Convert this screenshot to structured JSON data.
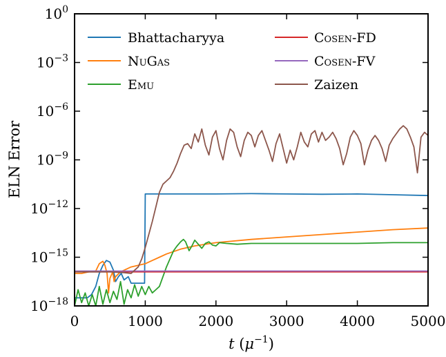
{
  "chart_data": {
    "type": "line",
    "title": "",
    "xlabel": "t (μ⁻¹)",
    "ylabel": "ELN Error",
    "xlim": [
      0,
      5000
    ],
    "ylim_log10": [
      -18,
      0
    ],
    "yscale": "log",
    "grid": false,
    "legend_placement": "top",
    "x_ticks": [
      0,
      1000,
      2000,
      3000,
      4000,
      5000
    ],
    "x_tick_labels": [
      "0",
      "1000",
      "2000",
      "3000",
      "4000",
      "5000"
    ],
    "y_ticks_log10": [
      -18,
      -15,
      -12,
      -9,
      -6,
      -3,
      0
    ],
    "y_tick_labels": [
      {
        "base": "10",
        "exp": "−18"
      },
      {
        "base": "10",
        "exp": "−15"
      },
      {
        "base": "10",
        "exp": "−12"
      },
      {
        "base": "10",
        "exp": "−9"
      },
      {
        "base": "10",
        "exp": "−6"
      },
      {
        "base": "10",
        "exp": "−3"
      },
      {
        "base": "10",
        "exp": "0"
      }
    ],
    "series": [
      {
        "name": "Bhattacharyya",
        "color": "#1f77b4",
        "points": [
          [
            0,
            -17.5
          ],
          [
            180,
            -17.5
          ],
          [
            240,
            -17.3
          ],
          [
            300,
            -16.8
          ],
          [
            350,
            -16.0
          ],
          [
            400,
            -15.5
          ],
          [
            450,
            -15.2
          ],
          [
            500,
            -15.3
          ],
          [
            550,
            -15.8
          ],
          [
            580,
            -16.5
          ],
          [
            620,
            -16.2
          ],
          [
            660,
            -16.0
          ],
          [
            700,
            -16.4
          ],
          [
            760,
            -16.2
          ],
          [
            800,
            -16.6
          ],
          [
            850,
            -16.6
          ],
          [
            990,
            -16.6
          ],
          [
            1000,
            -11.1
          ],
          [
            1200,
            -11.1
          ],
          [
            1500,
            -11.1
          ],
          [
            2000,
            -11.1
          ],
          [
            2500,
            -11.08
          ],
          [
            3000,
            -11.1
          ],
          [
            3500,
            -11.12
          ],
          [
            4000,
            -11.1
          ],
          [
            4500,
            -11.15
          ],
          [
            5000,
            -11.2
          ]
        ]
      },
      {
        "name": "NuGas",
        "color": "#ff7f0e",
        "points": [
          [
            0,
            -16.0
          ],
          [
            100,
            -16.0
          ],
          [
            200,
            -15.9
          ],
          [
            300,
            -15.85
          ],
          [
            350,
            -15.4
          ],
          [
            400,
            -15.25
          ],
          [
            430,
            -15.5
          ],
          [
            460,
            -16.0
          ],
          [
            480,
            -17.2
          ],
          [
            500,
            -16.3
          ],
          [
            540,
            -15.9
          ],
          [
            560,
            -16.5
          ],
          [
            580,
            -16.2
          ],
          [
            650,
            -15.9
          ],
          [
            700,
            -15.8
          ],
          [
            800,
            -15.6
          ],
          [
            900,
            -15.5
          ],
          [
            1000,
            -15.4
          ],
          [
            1100,
            -15.2
          ],
          [
            1200,
            -15.0
          ],
          [
            1300,
            -14.8
          ],
          [
            1500,
            -14.5
          ],
          [
            1700,
            -14.3
          ],
          [
            2000,
            -14.1
          ],
          [
            2500,
            -13.9
          ],
          [
            3000,
            -13.75
          ],
          [
            3500,
            -13.6
          ],
          [
            4000,
            -13.45
          ],
          [
            4500,
            -13.3
          ],
          [
            5000,
            -13.2
          ]
        ]
      },
      {
        "name": "Emu",
        "color": "#2ca02c",
        "points": [
          [
            0,
            -18.0
          ],
          [
            50,
            -17.0
          ],
          [
            100,
            -17.8
          ],
          [
            150,
            -17.2
          ],
          [
            200,
            -18.0
          ],
          [
            250,
            -17.3
          ],
          [
            300,
            -18.0
          ],
          [
            350,
            -16.8
          ],
          [
            400,
            -17.9
          ],
          [
            450,
            -17.0
          ],
          [
            500,
            -17.8
          ],
          [
            550,
            -17.1
          ],
          [
            600,
            -17.6
          ],
          [
            650,
            -16.5
          ],
          [
            700,
            -17.9
          ],
          [
            750,
            -17.0
          ],
          [
            800,
            -17.5
          ],
          [
            850,
            -16.7
          ],
          [
            900,
            -17.4
          ],
          [
            950,
            -16.8
          ],
          [
            1000,
            -17.3
          ],
          [
            1050,
            -16.8
          ],
          [
            1100,
            -17.2
          ],
          [
            1150,
            -17.0
          ],
          [
            1200,
            -16.8
          ],
          [
            1250,
            -16.2
          ],
          [
            1300,
            -15.6
          ],
          [
            1350,
            -15.1
          ],
          [
            1400,
            -14.6
          ],
          [
            1450,
            -14.3
          ],
          [
            1500,
            -14.05
          ],
          [
            1540,
            -13.9
          ],
          [
            1570,
            -14.05
          ],
          [
            1620,
            -14.6
          ],
          [
            1660,
            -14.3
          ],
          [
            1700,
            -13.95
          ],
          [
            1750,
            -14.2
          ],
          [
            1800,
            -14.45
          ],
          [
            1850,
            -14.15
          ],
          [
            1900,
            -14.05
          ],
          [
            1950,
            -14.25
          ],
          [
            2000,
            -14.3
          ],
          [
            2050,
            -14.1
          ],
          [
            2150,
            -14.15
          ],
          [
            2300,
            -14.2
          ],
          [
            2500,
            -14.15
          ],
          [
            3000,
            -14.15
          ],
          [
            3500,
            -14.15
          ],
          [
            4000,
            -14.15
          ],
          [
            4500,
            -14.1
          ],
          [
            5000,
            -14.1
          ]
        ]
      },
      {
        "name": "Coseν-FD",
        "color": "#d62728",
        "points": [
          [
            0,
            -15.9
          ],
          [
            500,
            -15.9
          ],
          [
            1000,
            -15.9
          ],
          [
            1500,
            -15.9
          ],
          [
            2000,
            -15.9
          ],
          [
            2500,
            -15.9
          ],
          [
            3000,
            -15.9
          ],
          [
            3500,
            -15.9
          ],
          [
            4000,
            -15.9
          ],
          [
            4500,
            -15.9
          ],
          [
            5000,
            -15.9
          ]
        ]
      },
      {
        "name": "Coseν-FV",
        "color": "#9467bd",
        "points": [
          [
            0,
            -15.85
          ],
          [
            500,
            -15.85
          ],
          [
            1000,
            -15.85
          ],
          [
            1500,
            -15.85
          ],
          [
            2000,
            -15.85
          ],
          [
            2500,
            -15.85
          ],
          [
            3000,
            -15.85
          ],
          [
            3500,
            -15.85
          ],
          [
            4000,
            -15.85
          ],
          [
            4500,
            -15.85
          ],
          [
            5000,
            -15.85
          ]
        ]
      },
      {
        "name": "Zaizen",
        "color": "#8c564b",
        "points": [
          [
            0,
            -15.9
          ],
          [
            500,
            -15.9
          ],
          [
            700,
            -15.95
          ],
          [
            800,
            -16.0
          ],
          [
            850,
            -15.8
          ],
          [
            900,
            -15.6
          ],
          [
            950,
            -15.1
          ],
          [
            1000,
            -14.4
          ],
          [
            1050,
            -13.6
          ],
          [
            1100,
            -12.8
          ],
          [
            1150,
            -11.9
          ],
          [
            1200,
            -11.0
          ],
          [
            1250,
            -10.5
          ],
          [
            1300,
            -10.3
          ],
          [
            1350,
            -10.1
          ],
          [
            1400,
            -9.7
          ],
          [
            1450,
            -9.2
          ],
          [
            1500,
            -8.6
          ],
          [
            1550,
            -8.1
          ],
          [
            1600,
            -8.0
          ],
          [
            1650,
            -8.3
          ],
          [
            1700,
            -7.4
          ],
          [
            1750,
            -7.9
          ],
          [
            1800,
            -7.1
          ],
          [
            1850,
            -8.1
          ],
          [
            1900,
            -8.7
          ],
          [
            1950,
            -7.6
          ],
          [
            2000,
            -7.2
          ],
          [
            2050,
            -8.3
          ],
          [
            2100,
            -9.0
          ],
          [
            2150,
            -7.8
          ],
          [
            2200,
            -7.1
          ],
          [
            2250,
            -7.3
          ],
          [
            2300,
            -8.2
          ],
          [
            2350,
            -8.8
          ],
          [
            2400,
            -7.8
          ],
          [
            2450,
            -7.3
          ],
          [
            2500,
            -7.5
          ],
          [
            2550,
            -8.2
          ],
          [
            2600,
            -7.5
          ],
          [
            2650,
            -7.2
          ],
          [
            2700,
            -7.8
          ],
          [
            2750,
            -8.4
          ],
          [
            2800,
            -9.1
          ],
          [
            2850,
            -8.0
          ],
          [
            2900,
            -7.4
          ],
          [
            2950,
            -8.3
          ],
          [
            3000,
            -9.2
          ],
          [
            3050,
            -8.4
          ],
          [
            3100,
            -9.0
          ],
          [
            3150,
            -8.2
          ],
          [
            3200,
            -7.3
          ],
          [
            3250,
            -7.9
          ],
          [
            3300,
            -8.2
          ],
          [
            3350,
            -7.4
          ],
          [
            3400,
            -7.2
          ],
          [
            3450,
            -7.9
          ],
          [
            3500,
            -7.3
          ],
          [
            3550,
            -7.8
          ],
          [
            3600,
            -7.6
          ],
          [
            3650,
            -7.3
          ],
          [
            3700,
            -7.7
          ],
          [
            3750,
            -8.3
          ],
          [
            3800,
            -9.3
          ],
          [
            3850,
            -8.6
          ],
          [
            3900,
            -7.6
          ],
          [
            3950,
            -7.2
          ],
          [
            4000,
            -7.5
          ],
          [
            4050,
            -8.0
          ],
          [
            4100,
            -9.3
          ],
          [
            4150,
            -8.4
          ],
          [
            4200,
            -7.8
          ],
          [
            4250,
            -7.5
          ],
          [
            4300,
            -7.8
          ],
          [
            4350,
            -8.3
          ],
          [
            4400,
            -9.1
          ],
          [
            4450,
            -8.1
          ],
          [
            4500,
            -7.7
          ],
          [
            4550,
            -7.4
          ],
          [
            4600,
            -7.1
          ],
          [
            4650,
            -6.9
          ],
          [
            4700,
            -7.1
          ],
          [
            4750,
            -7.6
          ],
          [
            4800,
            -8.2
          ],
          [
            4850,
            -9.8
          ],
          [
            4900,
            -7.6
          ],
          [
            4950,
            -7.3
          ],
          [
            5000,
            -7.5
          ]
        ]
      }
    ],
    "legend": [
      {
        "label": "Bhattacharyya",
        "smallcaps": false,
        "color": "#1f77b4"
      },
      {
        "label": "NuGas",
        "smallcaps": true,
        "color": "#ff7f0e"
      },
      {
        "label": "Emu",
        "smallcaps": true,
        "color": "#2ca02c"
      },
      {
        "label": "Coseν-FD",
        "smallcaps": true,
        "color": "#d62728"
      },
      {
        "label": "Coseν-FV",
        "smallcaps": true,
        "color": "#9467bd"
      },
      {
        "label": "Zaizen",
        "smallcaps": false,
        "color": "#8c564b"
      }
    ]
  }
}
